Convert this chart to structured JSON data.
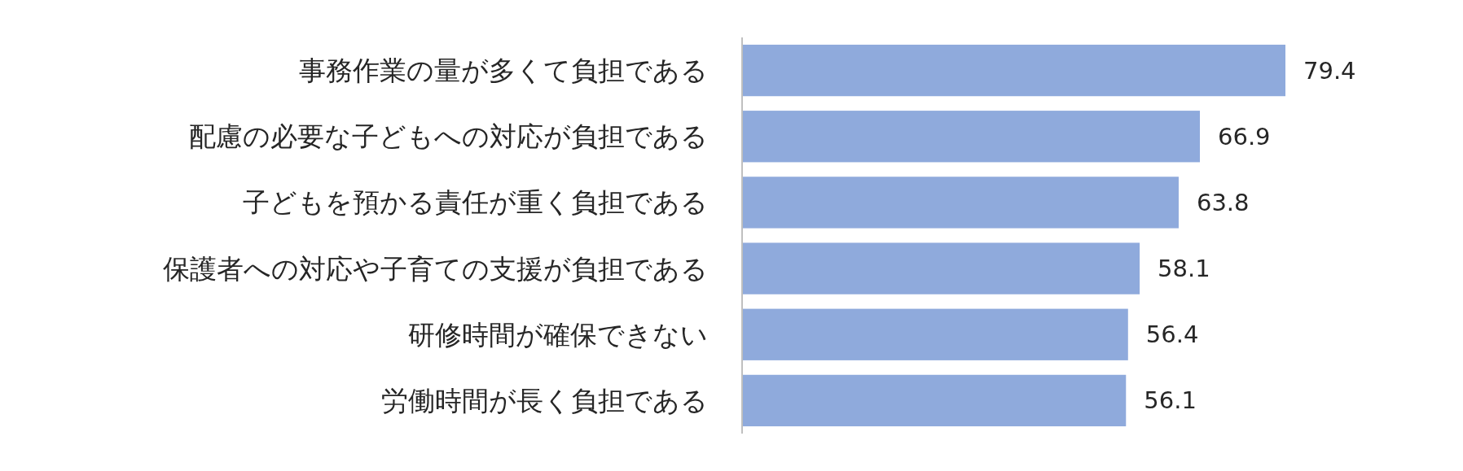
{
  "chart_data": {
    "type": "bar",
    "orientation": "horizontal",
    "categories": [
      "事務作業の量が多くて負担である",
      "配慮の必要な子どもへの対応が負担である",
      "子どもを預かる責任が重く負担である",
      "保護者への対応や子育ての支援が負担である",
      "研修時間が確保できない",
      "労働時間が長く負担である"
    ],
    "values": [
      79.4,
      66.9,
      63.8,
      58.1,
      56.4,
      56.1
    ],
    "color": "#8faadc",
    "data_labels": true
  }
}
